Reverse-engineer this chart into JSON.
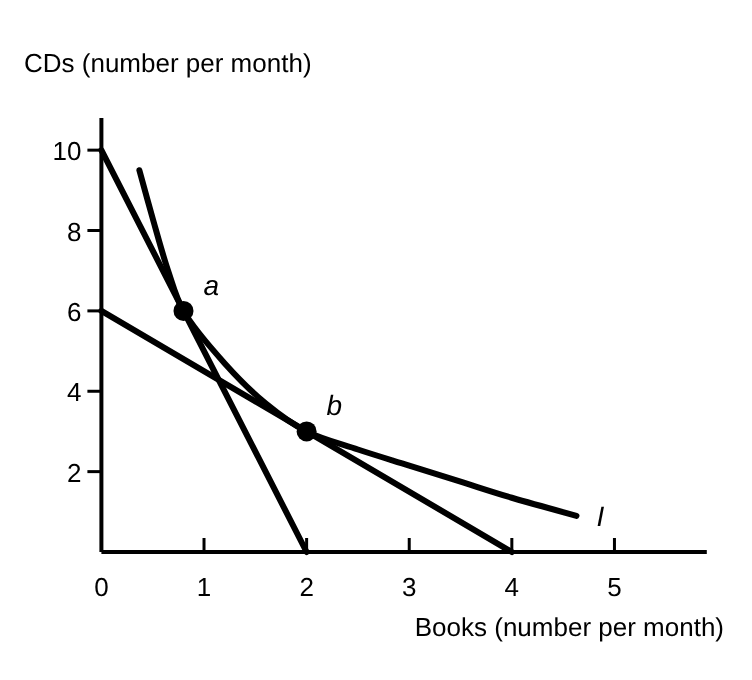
{
  "chart_data": {
    "type": "line",
    "xlabel": "Books (number per month)",
    "ylabel": "CDs (number per month)",
    "xlim": [
      0,
      5.9
    ],
    "ylim": [
      0,
      10.8
    ],
    "xticks": [
      0,
      1,
      2,
      3,
      4,
      5
    ],
    "yticks": [
      {
        "value": 0,
        "label": null
      },
      2,
      4,
      6,
      8,
      10
    ],
    "grid": false,
    "marker": "none",
    "line_style": "solid",
    "series": [
      {
        "color": "#000000",
        "x": [
          0,
          2
        ],
        "values": [
          10,
          0
        ]
      },
      {
        "color": "#000000",
        "x": [
          0,
          4
        ],
        "values": [
          6,
          0
        ]
      },
      {
        "name": "I",
        "color": "#000000",
        "x": [
          0.37,
          0.5,
          0.65,
          0.8,
          1.2,
          1.6,
          2,
          2.5,
          3,
          3.5,
          4,
          4.63
        ],
        "values": [
          9.5,
          8.3,
          7,
          6,
          4.7,
          3.7,
          3,
          2.55,
          2.15,
          1.75,
          1.35,
          0.9
        ]
      },
      {
        "type": "scatter",
        "marker": "circle",
        "color": "#000000",
        "x": [
          0.8,
          2
        ],
        "values": [
          6,
          3
        ]
      }
    ],
    "annotations": [
      {
        "text": "a",
        "x": 0.8,
        "y": 6
      },
      {
        "text": "b",
        "x": 2,
        "y": 3
      }
    ]
  }
}
